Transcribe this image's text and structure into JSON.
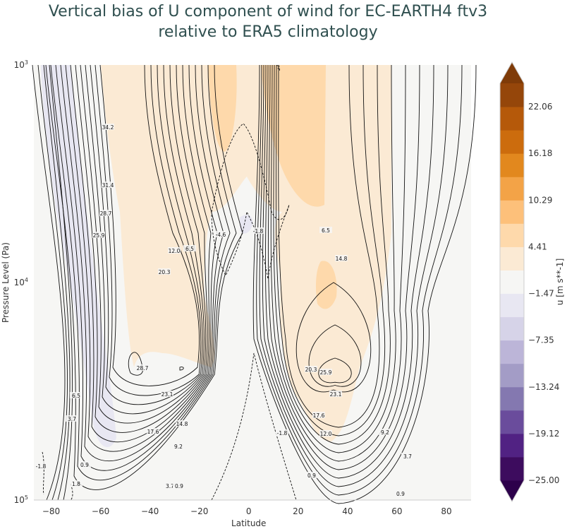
{
  "chart_data": {
    "type": "contour",
    "title": "Vertical bias of U component of wind for EC-EARTH4 ftv3\nrelative to ERA5 climatology",
    "title_lines": [
      "Vertical bias of U component of wind for EC-EARTH4 ftv3",
      "relative to ERA5 climatology"
    ],
    "xlabel": "Latitude",
    "ylabel": "Pressure Level (Pa)",
    "xlim": [
      -87,
      90
    ],
    "ylim": [
      100000,
      1000
    ],
    "yscale": "log",
    "xticks": [
      "-80",
      "-60",
      "-40",
      "-20",
      "0",
      "20",
      "40",
      "60",
      "80"
    ],
    "yticks": [
      {
        "base": "10",
        "exp": "3"
      },
      {
        "base": "10",
        "exp": "4"
      },
      {
        "base": "10",
        "exp": "5"
      }
    ],
    "colorbar": {
      "label": "u [m s**-1]",
      "levels_min": -25.0,
      "levels_max": 25.0,
      "level_step": 2.94,
      "extend": "both",
      "ticks": [
        "22.06",
        "16.18",
        "10.29",
        "4.41",
        "−1.47",
        "−7.35",
        "−13.24",
        "−19.12",
        "−25.00"
      ],
      "colors": [
        "#3d0c5e",
        "#512283",
        "#6a4c9c",
        "#8478b0",
        "#a39cc6",
        "#bcb5d8",
        "#d6d3e8",
        "#e8e7f2",
        "#f6f6f4",
        "#fbead4",
        "#fed9ab",
        "#fdc07a",
        "#f3a347",
        "#e2881e",
        "#cc6c0d",
        "#b5590a",
        "#95460a"
      ],
      "over_color": "#7f3b08",
      "under_color": "#2d004b"
    },
    "contour_labels": [
      "34.2",
      "31.4",
      "28.7",
      "25.9",
      "12.0",
      "6.5",
      "20.3",
      "-4.6",
      "-1.8",
      "6.5",
      "14.8",
      "28.7",
      "23.1",
      "20.3",
      "25.9",
      "23.1",
      "17.6",
      "12.0",
      "9.2",
      "6.5",
      "3.7",
      "17.6",
      "14.8",
      "9.2",
      "0.9",
      "-1.8",
      "1.8",
      "3.7",
      "0.9",
      "-1.8",
      "0.9",
      "3.7",
      "0.9"
    ]
  }
}
